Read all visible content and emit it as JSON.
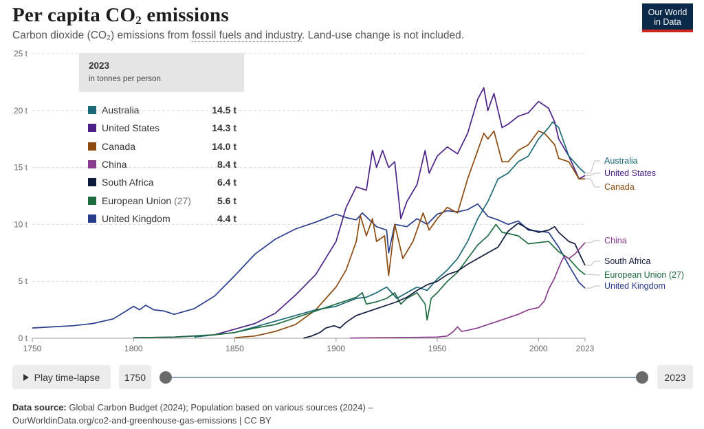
{
  "header": {
    "title_main": "Per capita CO",
    "title_sub": "2",
    "title_end": " emissions",
    "subtitle_pre": "Carbon dioxide (CO₂) emissions from ",
    "subtitle_link": "fossil fuels and industry",
    "subtitle_post": ". Land-use change is not included.",
    "logo_line1": "Our World",
    "logo_line2": "in Data"
  },
  "legend": {
    "year": "2023",
    "unit": "in tonnes per person",
    "rows": [
      {
        "name": "Australia",
        "extra": "",
        "value": "14.5 t",
        "color": "#1b6876"
      },
      {
        "name": "United States",
        "extra": "",
        "value": "14.3 t",
        "color": "#4c2187"
      },
      {
        "name": "Canada",
        "extra": "",
        "value": "14.0 t",
        "color": "#8c4a0e"
      },
      {
        "name": "China",
        "extra": "",
        "value": "8.4 t",
        "color": "#8a3d8e"
      },
      {
        "name": "South Africa",
        "extra": "",
        "value": "6.4 t",
        "color": "#0f1b3d"
      },
      {
        "name": "European Union",
        "extra": " (27)",
        "value": "5.6 t",
        "color": "#1e6b3f"
      },
      {
        "name": "United Kingdom",
        "extra": "",
        "value": "4.4 t",
        "color": "#283c8c"
      }
    ]
  },
  "controls": {
    "play_label": "Play time-lapse",
    "start_year": "1750",
    "end_year": "2023"
  },
  "footer": {
    "source_label": "Data source:",
    "source_text": " Global Carbon Budget (2024); Population based on various sources (2024) –",
    "url_line": "OurWorldinData.org/co2-and-greenhouse-gas-emissions | CC BY"
  },
  "chart_data": {
    "type": "line",
    "title": "Per capita CO₂ emissions",
    "unit": "t",
    "xlim": [
      1750,
      2023
    ],
    "ylim": [
      0,
      25
    ],
    "x_ticks": [
      "1750",
      "1800",
      "1850",
      "1900",
      "1950",
      "2000",
      "2023"
    ],
    "y_ticks": [
      "0 t",
      "5 t",
      "10 t",
      "15 t",
      "20 t",
      "25 t"
    ],
    "series": [
      {
        "name": "United Kingdom",
        "color": "#283c8c",
        "label_offset": 1,
        "end_label": "United Kingdom",
        "points": [
          [
            1750,
            0.9
          ],
          [
            1760,
            1.0
          ],
          [
            1770,
            1.1
          ],
          [
            1780,
            1.3
          ],
          [
            1790,
            1.7
          ],
          [
            1800,
            2.8
          ],
          [
            1803,
            2.5
          ],
          [
            1806,
            2.9
          ],
          [
            1810,
            2.5
          ],
          [
            1815,
            2.4
          ],
          [
            1820,
            2.1
          ],
          [
            1830,
            2.6
          ],
          [
            1840,
            3.7
          ],
          [
            1850,
            5.5
          ],
          [
            1860,
            7.4
          ],
          [
            1870,
            8.7
          ],
          [
            1880,
            9.6
          ],
          [
            1890,
            10.2
          ],
          [
            1900,
            10.9
          ],
          [
            1905,
            10.6
          ],
          [
            1910,
            10.4
          ],
          [
            1913,
            11.0
          ],
          [
            1920,
            9.8
          ],
          [
            1925,
            9.5
          ],
          [
            1926,
            7.5
          ],
          [
            1929,
            10.0
          ],
          [
            1935,
            9.8
          ],
          [
            1940,
            10.5
          ],
          [
            1945,
            10.0
          ],
          [
            1950,
            10.9
          ],
          [
            1955,
            11.2
          ],
          [
            1960,
            11.1
          ],
          [
            1965,
            11.3
          ],
          [
            1970,
            11.8
          ],
          [
            1975,
            10.7
          ],
          [
            1980,
            10.4
          ],
          [
            1985,
            10.0
          ],
          [
            1990,
            10.3
          ],
          [
            1995,
            9.5
          ],
          [
            2000,
            9.4
          ],
          [
            2005,
            9.3
          ],
          [
            2010,
            8.0
          ],
          [
            2015,
            6.4
          ],
          [
            2020,
            4.9
          ],
          [
            2023,
            4.4
          ]
        ]
      },
      {
        "name": "United States",
        "color": "#4c2187",
        "label_offset": 0,
        "end_label": "United States",
        "points": [
          [
            1800,
            0.05
          ],
          [
            1820,
            0.1
          ],
          [
            1840,
            0.3
          ],
          [
            1850,
            0.8
          ],
          [
            1860,
            1.3
          ],
          [
            1870,
            2.2
          ],
          [
            1880,
            3.8
          ],
          [
            1890,
            5.6
          ],
          [
            1900,
            8.5
          ],
          [
            1905,
            11.5
          ],
          [
            1910,
            13.3
          ],
          [
            1915,
            13.0
          ],
          [
            1918,
            16.5
          ],
          [
            1920,
            15.0
          ],
          [
            1923,
            16.5
          ],
          [
            1926,
            15.0
          ],
          [
            1929,
            15.5
          ],
          [
            1932,
            10.5
          ],
          [
            1935,
            12.0
          ],
          [
            1940,
            13.5
          ],
          [
            1944,
            16.5
          ],
          [
            1946,
            14.5
          ],
          [
            1950,
            16.0
          ],
          [
            1955,
            16.8
          ],
          [
            1960,
            16.2
          ],
          [
            1965,
            18.0
          ],
          [
            1970,
            21.0
          ],
          [
            1973,
            22.0
          ],
          [
            1975,
            20.0
          ],
          [
            1978,
            21.5
          ],
          [
            1982,
            18.5
          ],
          [
            1985,
            18.8
          ],
          [
            1990,
            19.5
          ],
          [
            1995,
            19.8
          ],
          [
            2000,
            20.8
          ],
          [
            2005,
            20.2
          ],
          [
            2008,
            19.0
          ],
          [
            2010,
            17.5
          ],
          [
            2015,
            16.0
          ],
          [
            2020,
            14.0
          ],
          [
            2023,
            14.3
          ]
        ]
      },
      {
        "name": "Canada",
        "color": "#8c4a0e",
        "label_offset": 0,
        "end_label": "Canada",
        "points": [
          [
            1850,
            0.05
          ],
          [
            1860,
            0.2
          ],
          [
            1870,
            0.6
          ],
          [
            1880,
            1.2
          ],
          [
            1890,
            2.5
          ],
          [
            1900,
            4.5
          ],
          [
            1905,
            6.0
          ],
          [
            1910,
            8.5
          ],
          [
            1912,
            10.8
          ],
          [
            1915,
            9.0
          ],
          [
            1918,
            10.5
          ],
          [
            1920,
            8.5
          ],
          [
            1924,
            9.0
          ],
          [
            1926,
            5.5
          ],
          [
            1929,
            10.0
          ],
          [
            1933,
            7.0
          ],
          [
            1938,
            8.5
          ],
          [
            1943,
            11.0
          ],
          [
            1946,
            9.5
          ],
          [
            1950,
            10.5
          ],
          [
            1955,
            11.5
          ],
          [
            1960,
            11.0
          ],
          [
            1965,
            14.0
          ],
          [
            1970,
            16.5
          ],
          [
            1973,
            18.0
          ],
          [
            1975,
            17.5
          ],
          [
            1978,
            18.2
          ],
          [
            1982,
            15.5
          ],
          [
            1985,
            15.5
          ],
          [
            1990,
            16.5
          ],
          [
            1995,
            17.0
          ],
          [
            2000,
            18.2
          ],
          [
            2003,
            18.0
          ],
          [
            2008,
            17.0
          ],
          [
            2010,
            15.8
          ],
          [
            2015,
            15.5
          ],
          [
            2020,
            14.0
          ],
          [
            2023,
            14.0
          ]
        ]
      },
      {
        "name": "Australia",
        "color": "#1b6876",
        "label_offset": 0,
        "end_label": "Australia",
        "points": [
          [
            1830,
            0.1
          ],
          [
            1850,
            0.5
          ],
          [
            1860,
            1.0
          ],
          [
            1870,
            1.5
          ],
          [
            1880,
            2.0
          ],
          [
            1890,
            2.5
          ],
          [
            1900,
            2.8
          ],
          [
            1910,
            3.5
          ],
          [
            1915,
            3.6
          ],
          [
            1920,
            4.0
          ],
          [
            1925,
            4.5
          ],
          [
            1930,
            3.5
          ],
          [
            1935,
            4.0
          ],
          [
            1940,
            4.5
          ],
          [
            1945,
            4.2
          ],
          [
            1950,
            5.2
          ],
          [
            1955,
            6.0
          ],
          [
            1960,
            7.0
          ],
          [
            1965,
            8.5
          ],
          [
            1970,
            10.5
          ],
          [
            1975,
            12.0
          ],
          [
            1980,
            14.0
          ],
          [
            1985,
            14.5
          ],
          [
            1990,
            15.5
          ],
          [
            1995,
            16.0
          ],
          [
            2000,
            17.5
          ],
          [
            2005,
            18.5
          ],
          [
            2007,
            19.0
          ],
          [
            2010,
            18.5
          ],
          [
            2013,
            17.0
          ],
          [
            2015,
            16.0
          ],
          [
            2020,
            15.0
          ],
          [
            2023,
            14.5
          ]
        ]
      },
      {
        "name": "European Union",
        "color": "#1e6b3f",
        "label_offset": 0,
        "end_label": "European Union (27)",
        "points": [
          [
            1800,
            0.05
          ],
          [
            1820,
            0.1
          ],
          [
            1840,
            0.3
          ],
          [
            1850,
            0.5
          ],
          [
            1860,
            0.9
          ],
          [
            1870,
            1.2
          ],
          [
            1880,
            1.8
          ],
          [
            1890,
            2.4
          ],
          [
            1900,
            3.0
          ],
          [
            1905,
            3.3
          ],
          [
            1910,
            3.6
          ],
          [
            1913,
            4.0
          ],
          [
            1915,
            3.0
          ],
          [
            1920,
            3.2
          ],
          [
            1925,
            3.5
          ],
          [
            1929,
            4.0
          ],
          [
            1932,
            3.0
          ],
          [
            1935,
            3.5
          ],
          [
            1940,
            4.0
          ],
          [
            1944,
            3.0
          ],
          [
            1945,
            1.6
          ],
          [
            1947,
            3.5
          ],
          [
            1950,
            4.0
          ],
          [
            1955,
            5.0
          ],
          [
            1960,
            5.8
          ],
          [
            1965,
            7.0
          ],
          [
            1970,
            8.2
          ],
          [
            1975,
            9.0
          ],
          [
            1979,
            10.0
          ],
          [
            1982,
            9.3
          ],
          [
            1985,
            9.2
          ],
          [
            1990,
            9.0
          ],
          [
            1995,
            8.3
          ],
          [
            2000,
            8.4
          ],
          [
            2005,
            8.5
          ],
          [
            2010,
            7.6
          ],
          [
            2015,
            7.0
          ],
          [
            2020,
            6.0
          ],
          [
            2023,
            5.6
          ]
        ]
      },
      {
        "name": "South Africa",
        "color": "#0f1b3d",
        "label_offset": 0,
        "end_label": "South Africa",
        "points": [
          [
            1884,
            0.01
          ],
          [
            1888,
            0.2
          ],
          [
            1892,
            0.5
          ],
          [
            1895,
            0.9
          ],
          [
            1899,
            1.1
          ],
          [
            1902,
            0.9
          ],
          [
            1905,
            1.4
          ],
          [
            1910,
            2.0
          ],
          [
            1915,
            2.3
          ],
          [
            1920,
            2.6
          ],
          [
            1925,
            2.9
          ],
          [
            1930,
            3.2
          ],
          [
            1935,
            3.6
          ],
          [
            1940,
            4.2
          ],
          [
            1945,
            4.7
          ],
          [
            1950,
            5.0
          ],
          [
            1955,
            5.6
          ],
          [
            1960,
            5.9
          ],
          [
            1965,
            6.5
          ],
          [
            1970,
            7.0
          ],
          [
            1975,
            7.5
          ],
          [
            1980,
            8.0
          ],
          [
            1985,
            9.4
          ],
          [
            1990,
            10.1
          ],
          [
            1995,
            9.6
          ],
          [
            2000,
            9.3
          ],
          [
            2005,
            9.5
          ],
          [
            2008,
            9.8
          ],
          [
            2010,
            9.3
          ],
          [
            2015,
            8.5
          ],
          [
            2018,
            8.3
          ],
          [
            2020,
            7.5
          ],
          [
            2023,
            6.4
          ]
        ]
      },
      {
        "name": "China",
        "color": "#8a3d8e",
        "label_offset": 0,
        "end_label": "China",
        "points": [
          [
            1907,
            0.02
          ],
          [
            1920,
            0.05
          ],
          [
            1940,
            0.08
          ],
          [
            1950,
            0.1
          ],
          [
            1955,
            0.2
          ],
          [
            1958,
            0.6
          ],
          [
            1960,
            1.0
          ],
          [
            1962,
            0.6
          ],
          [
            1965,
            0.7
          ],
          [
            1970,
            0.9
          ],
          [
            1975,
            1.2
          ],
          [
            1980,
            1.5
          ],
          [
            1985,
            1.8
          ],
          [
            1990,
            2.1
          ],
          [
            1995,
            2.5
          ],
          [
            2000,
            2.7
          ],
          [
            2003,
            3.3
          ],
          [
            2005,
            4.3
          ],
          [
            2008,
            5.3
          ],
          [
            2010,
            6.2
          ],
          [
            2012,
            7.0
          ],
          [
            2013,
            7.2
          ],
          [
            2015,
            7.0
          ],
          [
            2018,
            7.4
          ],
          [
            2020,
            7.8
          ],
          [
            2023,
            8.4
          ]
        ]
      }
    ]
  }
}
